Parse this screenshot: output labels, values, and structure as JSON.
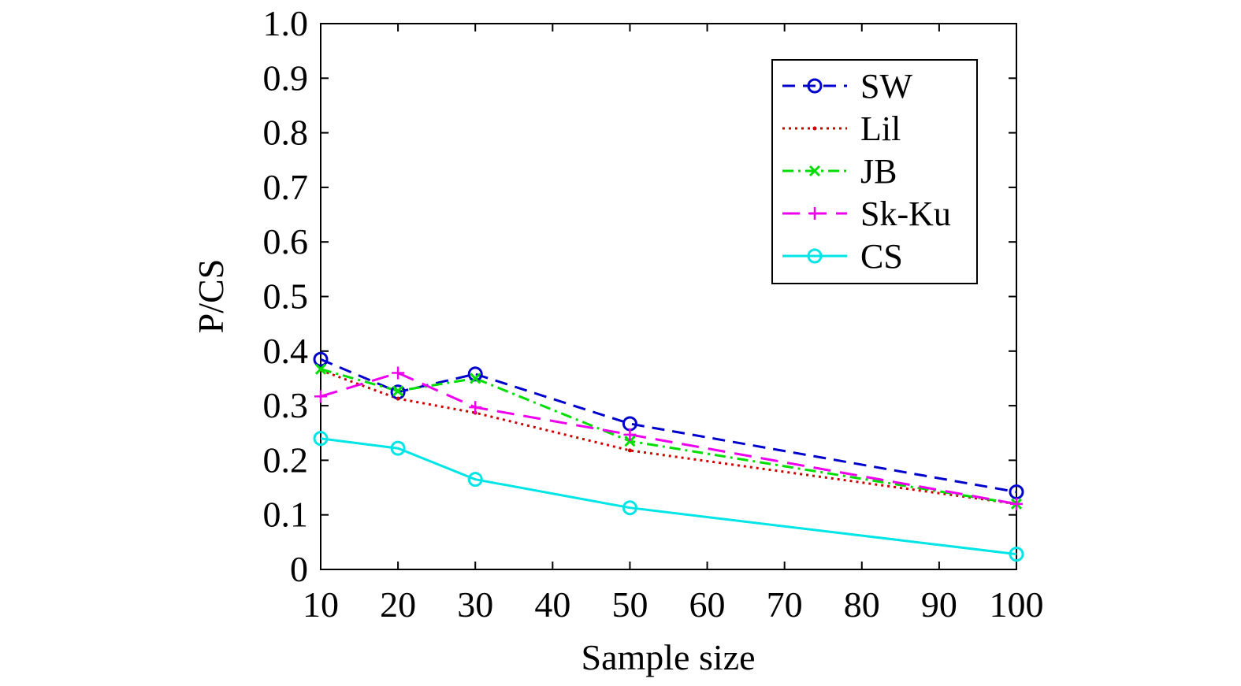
{
  "chart_data": {
    "type": "line",
    "title": "",
    "xlabel": "Sample size",
    "ylabel": "P/CS",
    "xlim": [
      10,
      100
    ],
    "ylim": [
      0,
      1.0
    ],
    "xticks": [
      10,
      20,
      30,
      40,
      50,
      60,
      70,
      80,
      90,
      100
    ],
    "yticks": [
      0,
      0.1,
      0.2,
      0.3,
      0.4,
      0.5,
      0.6,
      0.7,
      0.8,
      0.9,
      1.0
    ],
    "ytick_labels": [
      "0",
      "0.1",
      "0.2",
      "0.3",
      "0.4",
      "0.5",
      "0.6",
      "0.7",
      "0.8",
      "0.9",
      "1.0"
    ],
    "grid": false,
    "legend_position": "top-right",
    "x": [
      10,
      20,
      30,
      50,
      100
    ],
    "series": [
      {
        "name": "SW",
        "values": [
          0.385,
          0.325,
          0.358,
          0.267,
          0.142
        ],
        "color": "#0000cc",
        "dash": "dashed",
        "marker": "circle"
      },
      {
        "name": "Lil",
        "values": [
          0.365,
          0.313,
          0.287,
          0.218,
          0.12
        ],
        "color": "#cc0000",
        "dash": "dotted",
        "marker": "dot"
      },
      {
        "name": "JB",
        "values": [
          0.367,
          0.327,
          0.35,
          0.235,
          0.12
        ],
        "color": "#00dd00",
        "dash": "dashdot",
        "marker": "x"
      },
      {
        "name": "Sk-Ku",
        "values": [
          0.317,
          0.36,
          0.297,
          0.247,
          0.12
        ],
        "color": "#ee00ee",
        "dash": "longdash",
        "marker": "plus"
      },
      {
        "name": "CS",
        "values": [
          0.24,
          0.222,
          0.165,
          0.113,
          0.028
        ],
        "color": "#00e5e5",
        "dash": "solid",
        "marker": "circle"
      }
    ]
  }
}
